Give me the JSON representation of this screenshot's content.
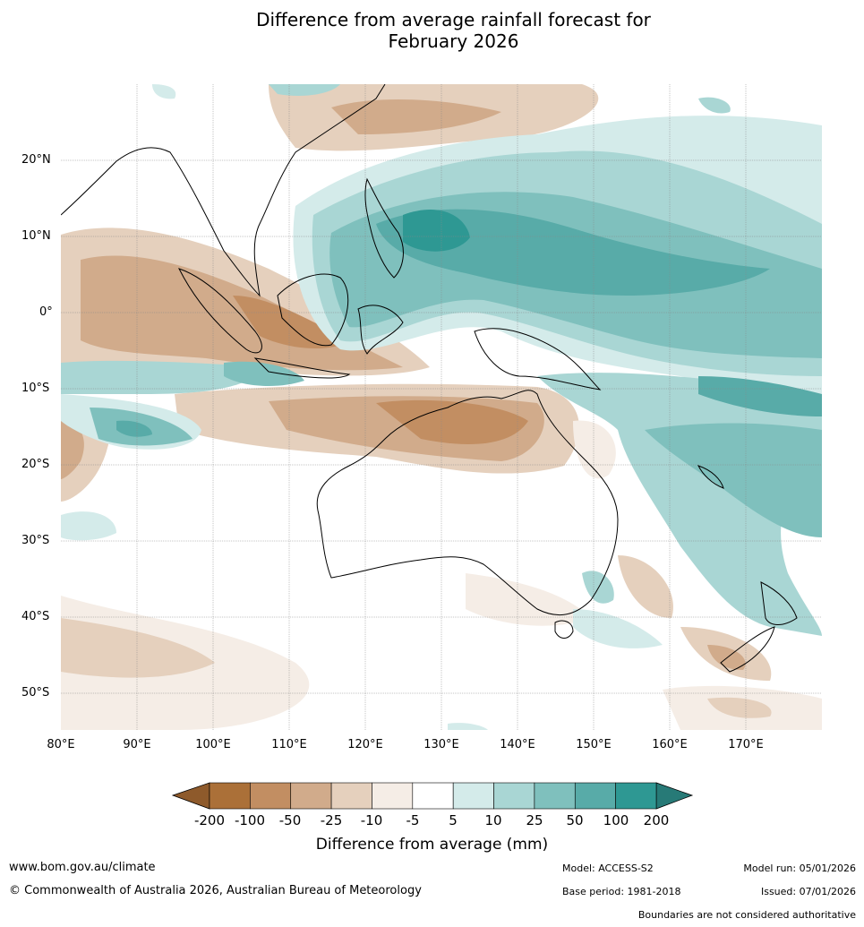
{
  "title_line1": "Difference from average rainfall forecast for",
  "title_line2": "February 2026",
  "map": {
    "lat_labels": [
      "20°N",
      "10°N",
      "0°",
      "10°S",
      "20°S",
      "30°S",
      "40°S",
      "50°S"
    ],
    "lon_labels": [
      "80°E",
      "90°E",
      "100°E",
      "110°E",
      "120°E",
      "130°E",
      "140°E",
      "150°E",
      "160°E",
      "170°E"
    ]
  },
  "colorbar": {
    "ticks": [
      "-200",
      "-100",
      "-50",
      "-25",
      "-10",
      "-5",
      "5",
      "10",
      "25",
      "50",
      "100",
      "200"
    ],
    "colors": [
      "#ab7038",
      "#c28e62",
      "#d1ab8b",
      "#e5d0bd",
      "#f5ede6",
      "#ffffff",
      "#d4ebea",
      "#a9d6d4",
      "#7fc0bd",
      "#58aba8",
      "#2e9893"
    ],
    "under_color": "#8e5a2b",
    "over_color": "#277a77",
    "label": "Difference from average (mm)"
  },
  "footer": {
    "url": "www.bom.gov.au/climate",
    "copyright": "© Commonwealth of Australia 2026, Australian Bureau of Meteorology",
    "model": "Model: ACCESS-S2",
    "base_period": "Base period: 1981-2018",
    "model_run": "Model run: 05/01/2026",
    "issued": "Issued: 07/01/2026",
    "disclaimer": "Boundaries are not considered authoritative"
  }
}
